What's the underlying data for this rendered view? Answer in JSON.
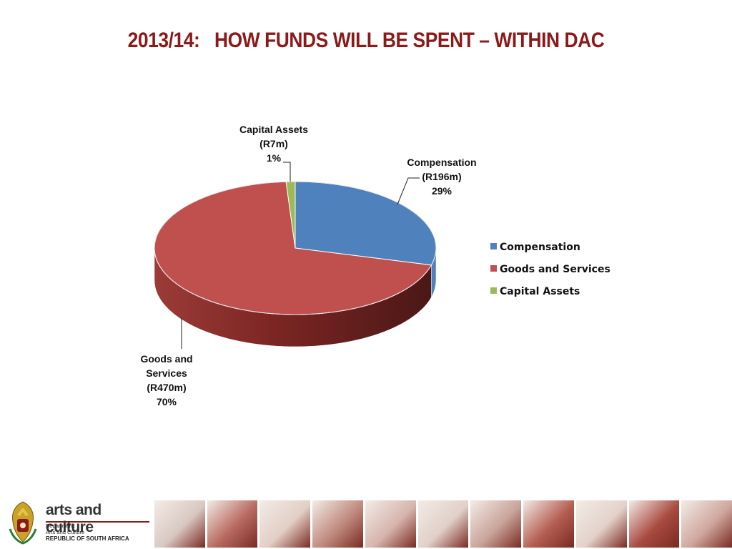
{
  "title": "2013/14:   HOW FUNDS WILL BE SPENT – WITHIN DAC",
  "chart_data": {
    "type": "pie",
    "style": "3d",
    "title": "",
    "legend_position": "right",
    "slices": [
      {
        "name": "Compensation",
        "value": 196,
        "percent": 29,
        "color": "#4f81bd",
        "label_lines": [
          "Compensation",
          "(R196m)",
          "29%"
        ]
      },
      {
        "name": "Goods and Services",
        "value": 470,
        "percent": 70,
        "color": "#c0504d",
        "label_lines": [
          "Goods and",
          "Services",
          "(R470m)",
          "70%"
        ]
      },
      {
        "name": "Capital Assets",
        "value": 7,
        "percent": 1,
        "color": "#9bbb59",
        "label_lines": [
          "Capital Assets",
          "(R7m)",
          "1%"
        ]
      }
    ],
    "legend": [
      "Compensation",
      "Goods and Services",
      "Capital Assets"
    ]
  },
  "footer": {
    "logo_name": "arts and culture",
    "dept_lines": [
      "Department:",
      "Arts and Culture",
      "REPUBLIC OF SOUTH AFRICA"
    ],
    "logo_icon": "coat-of-arms-icon",
    "strip_tiles": [
      "photo-tile",
      "photo-tile",
      "photo-tile",
      "photo-tile",
      "photo-tile",
      "photo-tile",
      "photo-tile",
      "photo-tile",
      "photo-tile",
      "photo-tile",
      "photo-tile"
    ]
  }
}
